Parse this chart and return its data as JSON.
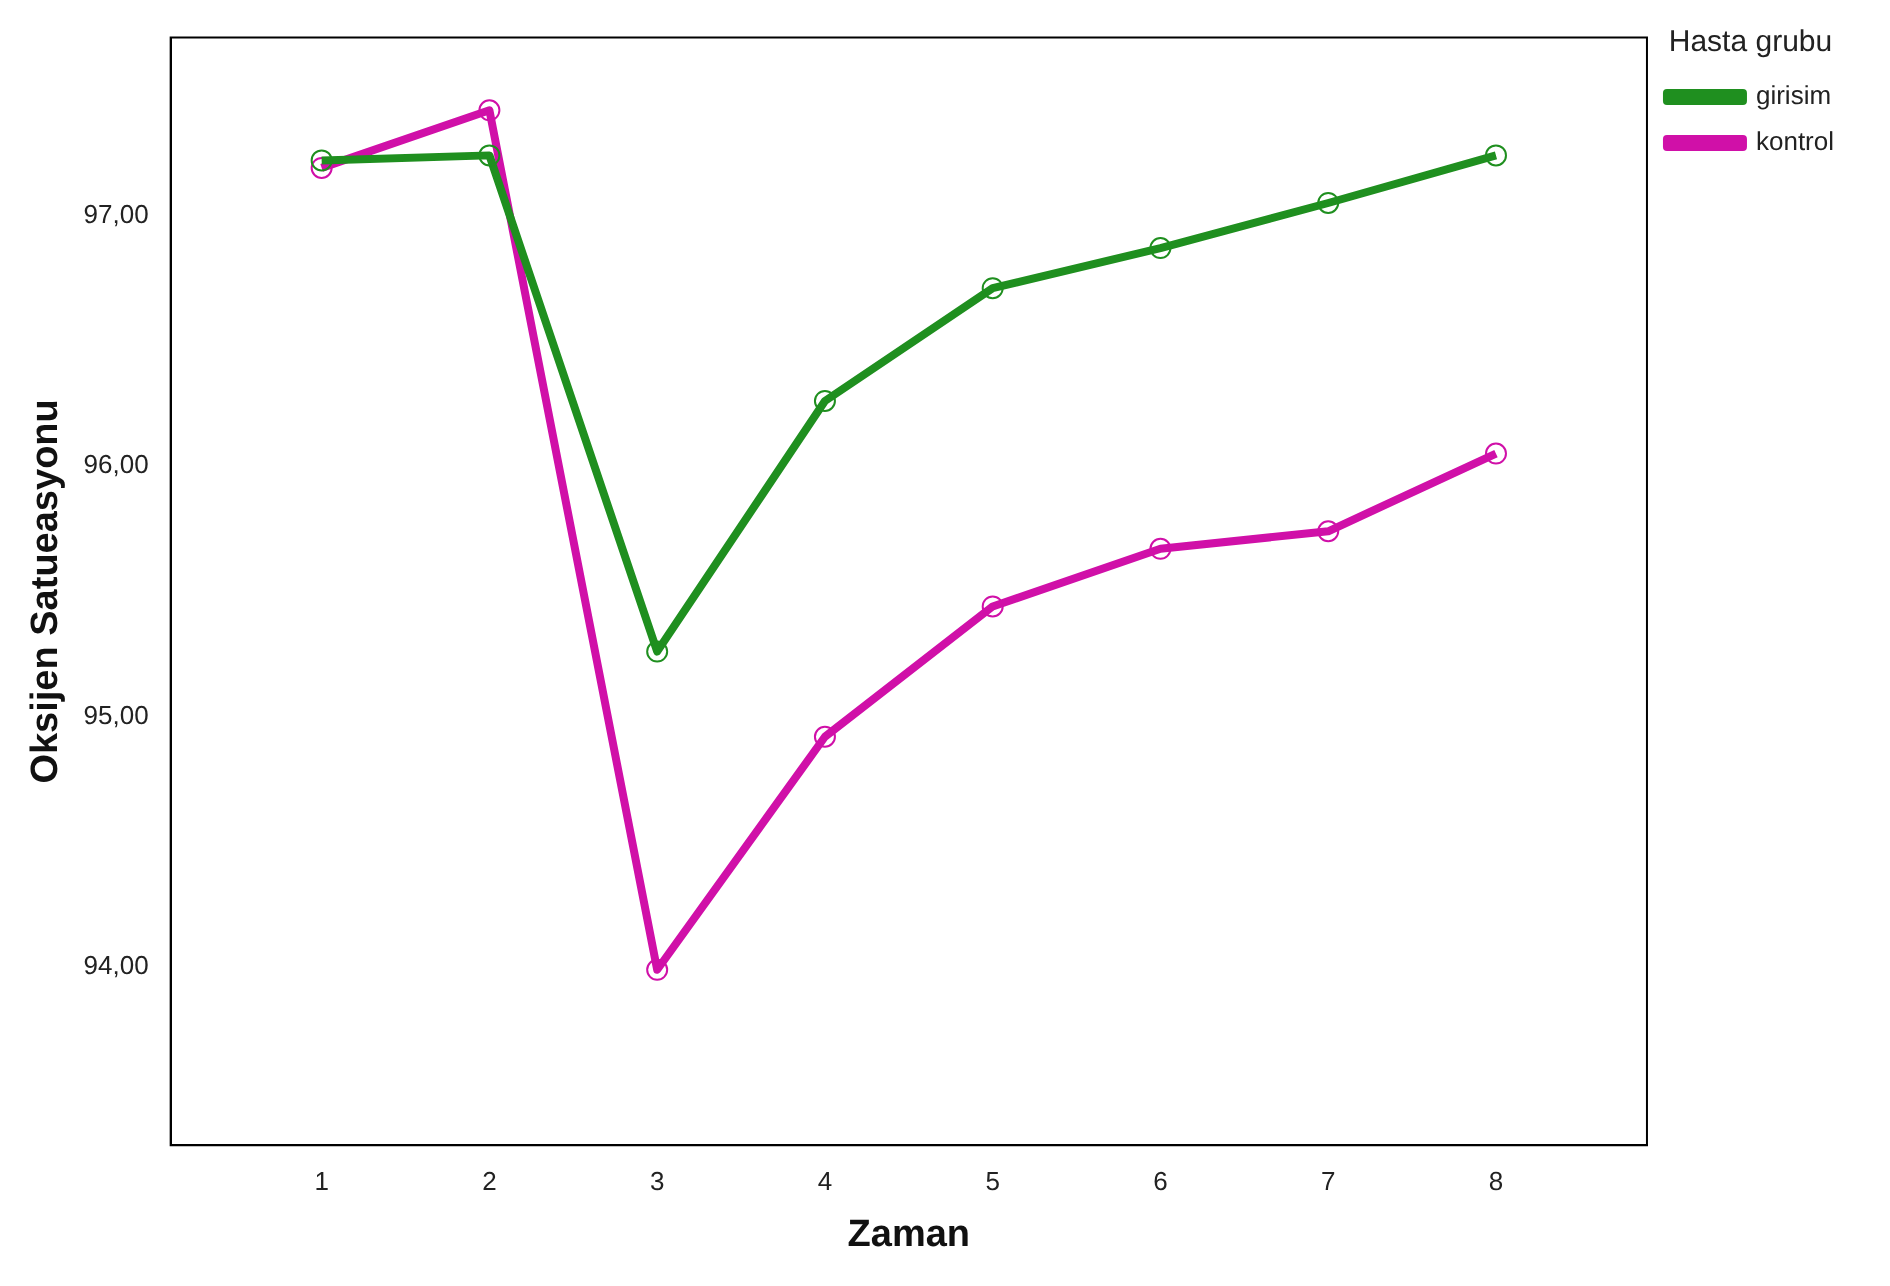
{
  "chart_data": {
    "type": "line",
    "xlabel": "Zaman",
    "ylabel": "Oksijen Satueasyonu",
    "legend_title": "Hasta grubu",
    "x": [
      1,
      2,
      3,
      4,
      5,
      6,
      7,
      8
    ],
    "series": [
      {
        "name": "girisim",
        "color": "#1f8f1f",
        "values": [
          97.22,
          97.24,
          95.26,
          96.26,
          96.71,
          96.87,
          97.05,
          97.24
        ]
      },
      {
        "name": "kontrol",
        "color": "#d010a8",
        "values": [
          97.19,
          97.42,
          93.99,
          94.92,
          95.44,
          95.67,
          95.74,
          96.05
        ]
      }
    ],
    "xlim": [
      0.1,
      8.9
    ],
    "xticks": [
      1,
      2,
      3,
      4,
      5,
      6,
      7,
      8
    ],
    "ylim": [
      93.29,
      97.71
    ],
    "yticks": [
      {
        "value": 94,
        "label": "94,00"
      },
      {
        "value": 95,
        "label": "95,00"
      },
      {
        "value": 96,
        "label": "96,00"
      },
      {
        "value": 97,
        "label": "97,00"
      }
    ],
    "grid": false,
    "legend": "top right",
    "marker": "circle",
    "line_style": "solid"
  }
}
